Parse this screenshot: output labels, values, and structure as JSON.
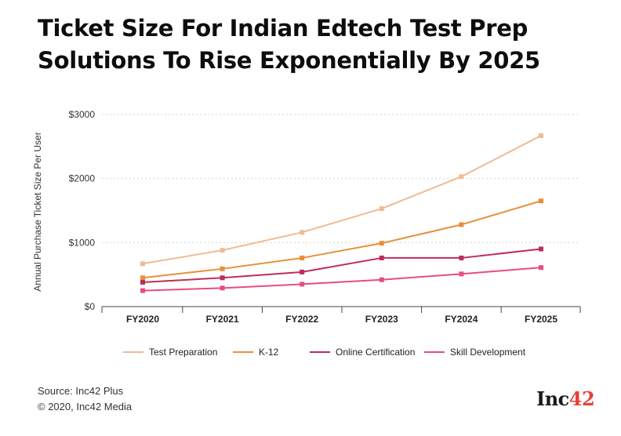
{
  "title": {
    "line1": "Ticket Size For Indian Edtech Test Prep",
    "line2": "Solutions To Rise Exponentially By 2025"
  },
  "chart_data": {
    "type": "line",
    "x": [
      "FY2020",
      "FY2021",
      "FY2022",
      "FY2023",
      "FY2024",
      "FY2025"
    ],
    "ylabel": "Annual Purchase Ticket Size Per User",
    "ylim": [
      0,
      3000
    ],
    "yticks": [
      {
        "value": 0,
        "label": "$0"
      },
      {
        "value": 1000,
        "label": "$1000"
      },
      {
        "value": 2000,
        "label": "$2000"
      },
      {
        "value": 3000,
        "label": "$3000"
      }
    ],
    "grid": "horizontal dashed",
    "legend_position": "bottom",
    "series": [
      {
        "name": "Test Preparation",
        "color": "#f0bb93",
        "values": [
          670,
          880,
          1160,
          1530,
          2030,
          2670
        ]
      },
      {
        "name": "K-12",
        "color": "#e98f3b",
        "values": [
          450,
          590,
          760,
          990,
          1280,
          1650
        ]
      },
      {
        "name": "Online Certification",
        "color": "#be2d57",
        "values": [
          380,
          450,
          540,
          760,
          760,
          900
        ]
      },
      {
        "name": "Skill Development",
        "color": "#e84c7f",
        "values": [
          250,
          290,
          350,
          420,
          510,
          610
        ]
      }
    ]
  },
  "footer": {
    "source": "Source: Inc42 Plus",
    "copyright": "© 2020, Inc42 Media"
  },
  "logo": {
    "text_main": "Inc",
    "text_accent": "42"
  }
}
